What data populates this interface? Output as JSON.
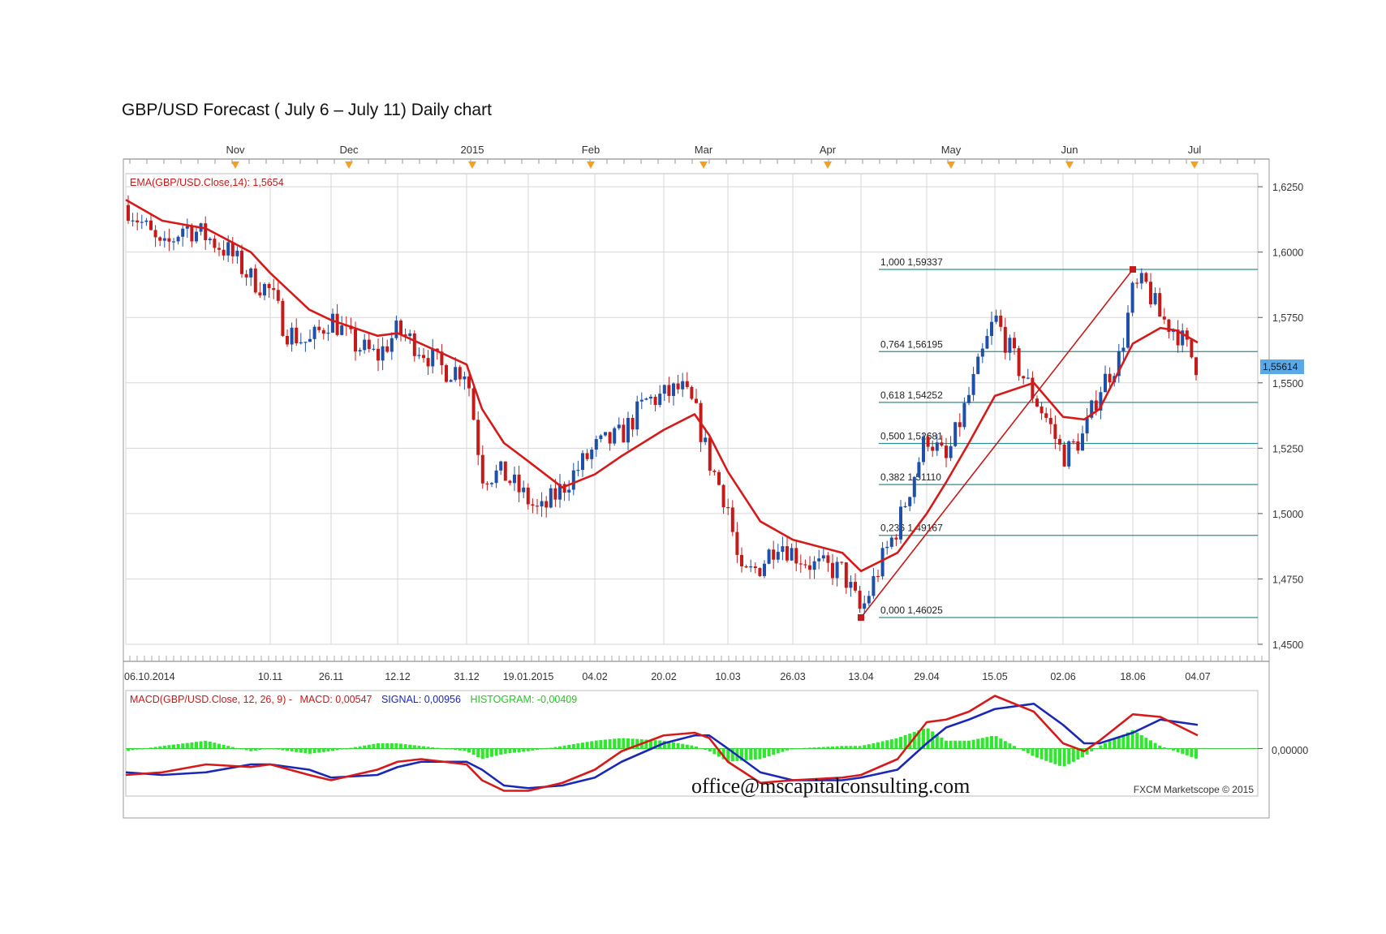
{
  "page_title": "GBP/USD Forecast ( July 6 – July 11) Daily chart",
  "month_labels": [
    "Nov",
    "Dec",
    "2015",
    "Feb",
    "Mar",
    "Apr",
    "May",
    "Jun",
    "Jul"
  ],
  "date_labels": [
    "06.10.2014",
    "10.11",
    "26.11",
    "12.12",
    "31.12",
    "19.01.2015",
    "04.02",
    "20.02",
    "10.03",
    "26.03",
    "13.04",
    "29.04",
    "15.05",
    "02.06",
    "18.06",
    "04.07"
  ],
  "ema_label": "EMA(GBP/USD.Close,14): 1,5654",
  "price_ticks": [
    "1,6250",
    "1,6000",
    "1,5750",
    "1,5500",
    "1,5250",
    "1,5000",
    "1,4750",
    "1,4500"
  ],
  "last_price": "1,55614",
  "macd_label": {
    "title": "MACD(GBP/USD.Close, 12, 26, 9) -",
    "macd": "MACD: 0,00547",
    "signal": "SIGNAL: 0,00956",
    "histogram": "HISTOGRAM: -0,00409"
  },
  "macd_tick": "0,00000",
  "watermark": "office@mscapitalconsulting.com",
  "footer": "FXCM Marketscope © 2015",
  "colors": {
    "ema": "#d61a1a",
    "bull": "#1f4fa8",
    "bear": "#c41a1a",
    "fib": "#2f8f8f",
    "macd": "#d61a1a",
    "signal": "#1a28b5",
    "histogram": "#2ee82e",
    "grid": "#d7d7d7",
    "price_badge": "#5aa9e6",
    "month_marker": "#f5a020"
  },
  "chart_data": {
    "type": "candlestick",
    "title": "GBP/USD Forecast ( July 6 – July 11) Daily chart",
    "ylim": [
      1.45,
      1.63
    ],
    "x_range": [
      "06.10.2014",
      "04.07"
    ],
    "price_path": [
      [
        "06.10.2014",
        1.618
      ],
      [
        "10.10",
        1.61
      ],
      [
        "15.10",
        1.6
      ],
      [
        "20.10",
        1.61
      ],
      [
        "25.10",
        1.606
      ],
      [
        "31.10",
        1.6
      ],
      [
        "05.11",
        1.59
      ],
      [
        "10.11",
        1.585
      ],
      [
        "14.11",
        1.57
      ],
      [
        "20.11",
        1.565
      ],
      [
        "26.11",
        1.575
      ],
      [
        "02.12",
        1.565
      ],
      [
        "08.12",
        1.56
      ],
      [
        "12.12",
        1.57
      ],
      [
        "18.12",
        1.563
      ],
      [
        "24.12",
        1.555
      ],
      [
        "31.12",
        1.555
      ],
      [
        "05.01",
        1.515
      ],
      [
        "12.01",
        1.515
      ],
      [
        "19.01.2015",
        1.505
      ],
      [
        "22.01",
        1.5
      ],
      [
        "28.01",
        1.51
      ],
      [
        "04.02",
        1.525
      ],
      [
        "10.02",
        1.53
      ],
      [
        "16.02",
        1.543
      ],
      [
        "20.02",
        1.545
      ],
      [
        "24.02",
        1.548
      ],
      [
        "27.02",
        1.54
      ],
      [
        "04.03",
        1.52
      ],
      [
        "10.03",
        1.503
      ],
      [
        "13.03",
        1.475
      ],
      [
        "18.03",
        1.48
      ],
      [
        "23.03",
        1.49
      ],
      [
        "26.03",
        1.485
      ],
      [
        "01.04",
        1.48
      ],
      [
        "08.04",
        1.478
      ],
      [
        "13.04",
        1.462
      ],
      [
        "17.04",
        1.48
      ],
      [
        "22.04",
        1.495
      ],
      [
        "29.04",
        1.53
      ],
      [
        "05.05",
        1.52
      ],
      [
        "10.05",
        1.545
      ],
      [
        "15.05",
        1.575
      ],
      [
        "19.05",
        1.56
      ],
      [
        "24.05",
        1.545
      ],
      [
        "28.05",
        1.535
      ],
      [
        "02.06",
        1.522
      ],
      [
        "07.06",
        1.53
      ],
      [
        "11.06",
        1.548
      ],
      [
        "15.06",
        1.56
      ],
      [
        "18.06",
        1.585
      ],
      [
        "21.06",
        1.588
      ],
      [
        "25.06",
        1.575
      ],
      [
        "29.06",
        1.57
      ],
      [
        "04.07",
        1.556
      ]
    ],
    "ema": {
      "name": "EMA(GBP/USD.Close,14)",
      "last": 1.5654,
      "points": [
        [
          "06.10.2014",
          1.62
        ],
        [
          "15.10",
          1.612
        ],
        [
          "25.10",
          1.609
        ],
        [
          "05.11",
          1.6
        ],
        [
          "10.11",
          1.592
        ],
        [
          "20.11",
          1.578
        ],
        [
          "26.11",
          1.574
        ],
        [
          "08.12",
          1.568
        ],
        [
          "12.12",
          1.569
        ],
        [
          "24.12",
          1.561
        ],
        [
          "31.12",
          1.557
        ],
        [
          "05.01",
          1.54
        ],
        [
          "12.01",
          1.527
        ],
        [
          "19.01.2015",
          1.52
        ],
        [
          "28.01",
          1.51
        ],
        [
          "04.02",
          1.515
        ],
        [
          "10.02",
          1.522
        ],
        [
          "20.02",
          1.532
        ],
        [
          "27.02",
          1.538
        ],
        [
          "04.03",
          1.53
        ],
        [
          "10.03",
          1.516
        ],
        [
          "18.03",
          1.497
        ],
        [
          "26.03",
          1.49
        ],
        [
          "08.04",
          1.485
        ],
        [
          "13.04",
          1.478
        ],
        [
          "22.04",
          1.485
        ],
        [
          "29.04",
          1.5
        ],
        [
          "05.05",
          1.512
        ],
        [
          "10.05",
          1.527
        ],
        [
          "15.05",
          1.545
        ],
        [
          "24.05",
          1.55
        ],
        [
          "02.06",
          1.537
        ],
        [
          "07.06",
          1.536
        ],
        [
          "11.06",
          1.54
        ],
        [
          "18.06",
          1.565
        ],
        [
          "25.06",
          1.571
        ],
        [
          "29.06",
          1.57
        ],
        [
          "04.07",
          1.5654
        ]
      ]
    },
    "fibonacci": [
      {
        "level": "1,000",
        "price": 1.59337,
        "label": "1,000 1,59337"
      },
      {
        "level": "0,764",
        "price": 1.56195,
        "label": "0,764 1,56195"
      },
      {
        "level": "0,618",
        "price": 1.54252,
        "label": "0,618 1,54252"
      },
      {
        "level": "0,500",
        "price": 1.52681,
        "label": "0,500 1,52681"
      },
      {
        "level": "0,382",
        "price": 1.5111,
        "label": "0,382 1,51110"
      },
      {
        "level": "0,236",
        "price": 1.49167,
        "label": "0,236 1,49167"
      },
      {
        "level": "0,000",
        "price": 1.46025,
        "label": "0,000 1,46025"
      }
    ],
    "fib_trendline": {
      "from": [
        "13.04",
        1.46025
      ],
      "to": [
        "18.06",
        1.59337
      ]
    },
    "last_close": 1.55614,
    "macd": {
      "ylim": [
        -0.018,
        0.022
      ],
      "macd_last": 0.00547,
      "signal_last": 0.00956,
      "histogram_last": -0.00409,
      "macd_points": [
        [
          "06.10.2014",
          -0.01
        ],
        [
          "15.10",
          -0.009
        ],
        [
          "25.10",
          -0.006
        ],
        [
          "05.11",
          -0.007
        ],
        [
          "10.11",
          -0.006
        ],
        [
          "20.11",
          -0.01
        ],
        [
          "26.11",
          -0.012
        ],
        [
          "08.12",
          -0.008
        ],
        [
          "12.12",
          -0.005
        ],
        [
          "18.12",
          -0.004
        ],
        [
          "31.12",
          -0.006
        ],
        [
          "05.01",
          -0.012
        ],
        [
          "12.01",
          -0.016
        ],
        [
          "19.01.2015",
          -0.016
        ],
        [
          "28.01",
          -0.013
        ],
        [
          "04.02",
          -0.008
        ],
        [
          "10.02",
          -0.001
        ],
        [
          "20.02",
          0.005
        ],
        [
          "27.02",
          0.006
        ],
        [
          "04.03",
          0.004
        ],
        [
          "10.03",
          -0.005
        ],
        [
          "18.03",
          -0.013
        ],
        [
          "26.03",
          -0.012
        ],
        [
          "08.04",
          -0.011
        ],
        [
          "13.04",
          -0.01
        ],
        [
          "22.04",
          -0.004
        ],
        [
          "29.04",
          0.01
        ],
        [
          "05.05",
          0.011
        ],
        [
          "10.05",
          0.014
        ],
        [
          "15.05",
          0.02
        ],
        [
          "24.05",
          0.014
        ],
        [
          "02.06",
          0.002
        ],
        [
          "07.06",
          -0.001
        ],
        [
          "11.06",
          0.003
        ],
        [
          "18.06",
          0.013
        ],
        [
          "25.06",
          0.012
        ],
        [
          "04.07",
          0.005
        ]
      ],
      "signal_points": [
        [
          "06.10.2014",
          -0.009
        ],
        [
          "15.10",
          -0.01
        ],
        [
          "25.10",
          -0.009
        ],
        [
          "05.11",
          -0.006
        ],
        [
          "10.11",
          -0.006
        ],
        [
          "20.11",
          -0.008
        ],
        [
          "26.11",
          -0.011
        ],
        [
          "08.12",
          -0.01
        ],
        [
          "12.12",
          -0.007
        ],
        [
          "18.12",
          -0.005
        ],
        [
          "31.12",
          -0.005
        ],
        [
          "05.01",
          -0.008
        ],
        [
          "12.01",
          -0.014
        ],
        [
          "19.01.2015",
          -0.015
        ],
        [
          "28.01",
          -0.014
        ],
        [
          "04.02",
          -0.011
        ],
        [
          "10.02",
          -0.005
        ],
        [
          "20.02",
          0.002
        ],
        [
          "27.02",
          0.005
        ],
        [
          "04.03",
          0.005
        ],
        [
          "10.03",
          0.0
        ],
        [
          "18.03",
          -0.009
        ],
        [
          "26.03",
          -0.012
        ],
        [
          "08.04",
          -0.012
        ],
        [
          "13.04",
          -0.011
        ],
        [
          "22.04",
          -0.008
        ],
        [
          "29.04",
          0.002
        ],
        [
          "05.05",
          0.008
        ],
        [
          "10.05",
          0.011
        ],
        [
          "15.05",
          0.015
        ],
        [
          "24.05",
          0.017
        ],
        [
          "02.06",
          0.009
        ],
        [
          "07.06",
          0.002
        ],
        [
          "11.06",
          0.002
        ],
        [
          "18.06",
          0.006
        ],
        [
          "25.06",
          0.011
        ],
        [
          "04.07",
          0.009
        ]
      ]
    }
  }
}
